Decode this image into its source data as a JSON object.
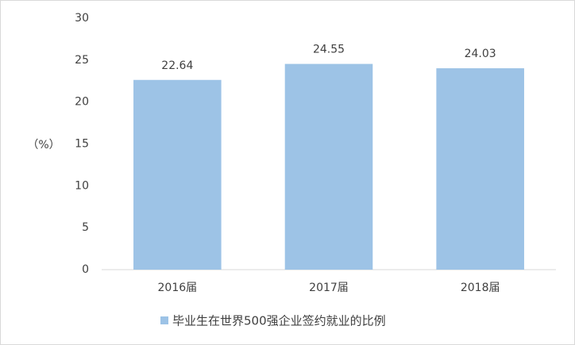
{
  "chart_data": {
    "type": "bar",
    "y_label": "（%）",
    "categories": [
      "2016届",
      "2017届",
      "2018届"
    ],
    "series": [
      {
        "name": "毕业生在世界500强企业签约就业的比例",
        "color": "#9dc3e6",
        "values": [
          22.64,
          24.55,
          24.03
        ]
      }
    ],
    "ylim": [
      0,
      30
    ],
    "yticks": [
      0,
      5,
      10,
      15,
      20,
      25,
      30
    ],
    "grid": false,
    "legend": "bottom"
  }
}
